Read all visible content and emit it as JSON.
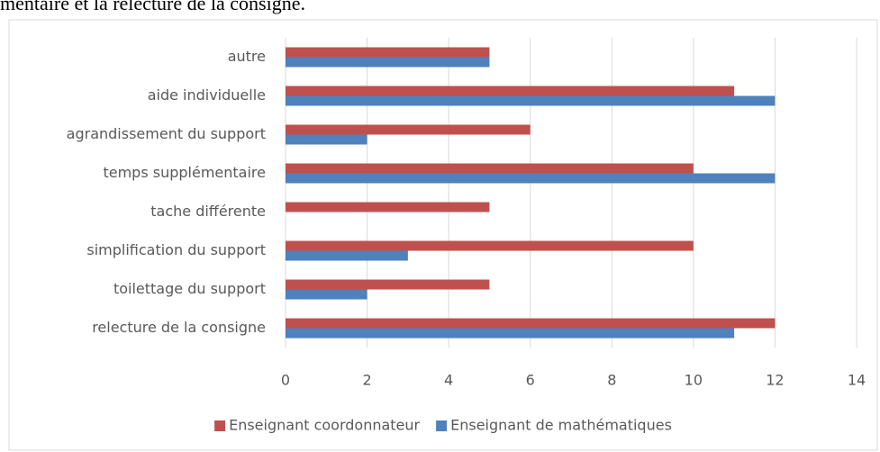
{
  "chart_data": {
    "type": "bar",
    "orientation": "horizontal",
    "caption": "mentaire et la relecture de la consigne.",
    "categories": [
      "autre",
      "aide individuelle",
      "agrandissement du support",
      "temps supplémentaire",
      "tache différente",
      "simplification du support",
      "toilettage du support",
      "relecture de la consigne"
    ],
    "series": [
      {
        "name": "Enseignant coordonnateur",
        "color": "#c0504d",
        "values": [
          5,
          11,
          6,
          10,
          5,
          10,
          5,
          12
        ]
      },
      {
        "name": "Enseignant de mathématiques",
        "color": "#4f81bd",
        "values": [
          5,
          12,
          2,
          12,
          0,
          3,
          2,
          11
        ]
      }
    ],
    "xlim": [
      0,
      14
    ],
    "xticks": [
      0,
      2,
      4,
      6,
      8,
      10,
      12,
      14
    ],
    "grid": true,
    "legend": "bottom"
  }
}
